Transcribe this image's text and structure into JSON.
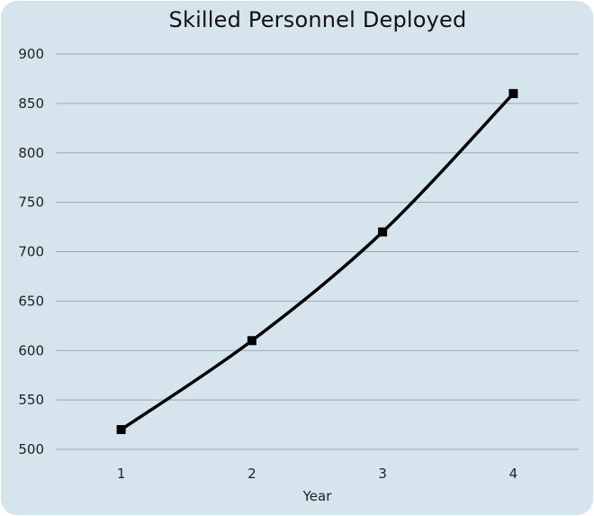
{
  "chart_data": {
    "type": "line",
    "title": "Skilled Personnel Deployed",
    "xlabel": "Year",
    "ylabel": "",
    "categories": [
      "1",
      "2",
      "3",
      "4"
    ],
    "series": [
      {
        "values": [
          520,
          610,
          720,
          860
        ]
      }
    ],
    "ylim": [
      500,
      900
    ],
    "yticks": [
      500,
      550,
      600,
      650,
      700,
      750,
      800,
      850,
      900
    ],
    "grid": true,
    "smooth": true,
    "marker": "square",
    "colors": {
      "background": "#d6e4ee",
      "line": "#000000",
      "grid": "#9aa9b4"
    }
  }
}
